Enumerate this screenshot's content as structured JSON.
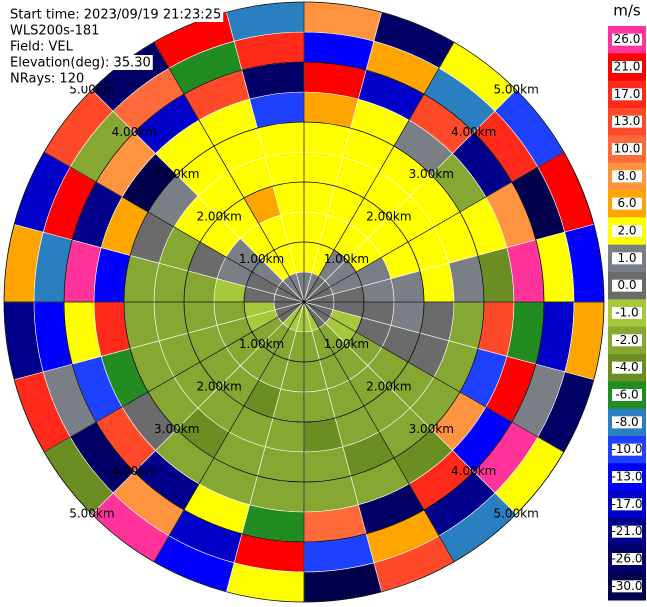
{
  "chart_data": {
    "type": "ppi",
    "header": [
      "Start time: 2023/09/19 21:23:25",
      "WLS200s-181",
      "Field: VEL",
      "Elevation(deg): 35.30",
      "NRays: 120"
    ],
    "unit": "m/s",
    "colorbar": {
      "ticks": [
        {
          "value": 26,
          "label": "26.0"
        },
        {
          "value": 21,
          "label": "21.0"
        },
        {
          "value": 17,
          "label": "17.0"
        },
        {
          "value": 13,
          "label": "13.0"
        },
        {
          "value": 10,
          "label": "10.0"
        },
        {
          "value": 8,
          "label": "8.0"
        },
        {
          "value": 6,
          "label": "6.0"
        },
        {
          "value": 2,
          "label": "2.0"
        },
        {
          "value": 1,
          "label": "1.0"
        },
        {
          "value": 0,
          "label": "0.0"
        },
        {
          "value": -1,
          "label": "-1.0"
        },
        {
          "value": -2,
          "label": "-2.0"
        },
        {
          "value": -4,
          "label": "-4.0"
        },
        {
          "value": -6,
          "label": "-6.0"
        },
        {
          "value": -8,
          "label": "-8.0"
        },
        {
          "value": -10,
          "label": "-10.0"
        },
        {
          "value": -13,
          "label": "-13.0"
        },
        {
          "value": -17,
          "label": "-17.0"
        },
        {
          "value": -21,
          "label": "-21.0"
        },
        {
          "value": -26,
          "label": "-26.0"
        },
        {
          "value": -30,
          "label": "-30.0"
        }
      ],
      "colors": [
        "#ff3399",
        "#ff0000",
        "#ff2a1a",
        "#ff4a2a",
        "#ff6a3a",
        "#ff9440",
        "#ffa500",
        "#ffff00",
        "#7a7f86",
        "#6b6b6b",
        "#a8c83c",
        "#86a832",
        "#6b8e23",
        "#228b22",
        "#2a7fc0",
        "#1e40ff",
        "#0000ff",
        "#0000c8",
        "#00008b",
        "#000066",
        "#00004c"
      ]
    },
    "rings": [
      {
        "value": 1,
        "label": "1.00km"
      },
      {
        "value": 2,
        "label": "2.00km"
      },
      {
        "value": 3,
        "label": "3.00km"
      },
      {
        "value": 4,
        "label": "4.00km"
      },
      {
        "value": 5,
        "label": "5.00km"
      }
    ],
    "field": [
      [
        1,
        2,
        2,
        2,
        2,
        2,
        6,
        21,
        -13,
        8
      ],
      [
        1,
        2,
        2,
        2,
        2,
        2,
        2,
        -17,
        6,
        -26
      ],
      [
        0,
        1,
        2,
        2,
        2,
        2,
        1,
        13,
        -8,
        2
      ],
      [
        0,
        1,
        2,
        2,
        2,
        2,
        -2,
        -21,
        17,
        -10
      ],
      [
        0,
        1,
        1,
        2,
        2,
        2,
        2,
        8,
        -30,
        21
      ],
      [
        0,
        0,
        1,
        1,
        2,
        1,
        -4,
        26,
        2,
        -13
      ],
      [
        0,
        0,
        0,
        1,
        0,
        -2,
        13,
        -6,
        -17,
        6
      ],
      [
        0,
        -1,
        0,
        0,
        0,
        -2,
        -10,
        21,
        1,
        -26
      ],
      [
        0,
        -1,
        -2,
        -2,
        -2,
        -2,
        8,
        -13,
        26,
        2
      ],
      [
        0,
        -2,
        -2,
        -2,
        -2,
        -2,
        -4,
        17,
        -21,
        -8
      ],
      [
        -1,
        -2,
        -2,
        -2,
        -2,
        -4,
        -2,
        -26,
        6,
        13
      ],
      [
        -1,
        -2,
        -2,
        -2,
        -4,
        -2,
        -2,
        10,
        -10,
        -30
      ],
      [
        -1,
        -2,
        -2,
        -2,
        -2,
        -2,
        -2,
        -6,
        21,
        2
      ],
      [
        -1,
        -2,
        -2,
        -4,
        -2,
        -2,
        -2,
        2,
        -17,
        -13
      ],
      [
        -1,
        -2,
        -2,
        -2,
        -2,
        -4,
        -2,
        -21,
        8,
        26
      ],
      [
        0,
        -2,
        -2,
        -2,
        -2,
        -2,
        0,
        13,
        -26,
        -4
      ],
      [
        0,
        -1,
        -2,
        -2,
        -2,
        -2,
        -6,
        -10,
        1,
        17
      ],
      [
        0,
        -1,
        -2,
        -2,
        -2,
        -2,
        17,
        2,
        -13,
        -21
      ],
      [
        0,
        0,
        -1,
        -2,
        -2,
        -2,
        -13,
        26,
        -8,
        6
      ],
      [
        0,
        0,
        1,
        0,
        -2,
        0,
        6,
        -21,
        21,
        -17
      ],
      [
        0,
        1,
        1,
        2,
        2,
        1,
        -30,
        8,
        -2,
        13
      ],
      [
        1,
        2,
        2,
        2,
        2,
        2,
        2,
        -17,
        10,
        -26
      ],
      [
        1,
        2,
        2,
        6,
        2,
        2,
        2,
        13,
        -6,
        21
      ],
      [
        1,
        2,
        2,
        2,
        2,
        2,
        -10,
        -26,
        17,
        -8
      ]
    ]
  }
}
